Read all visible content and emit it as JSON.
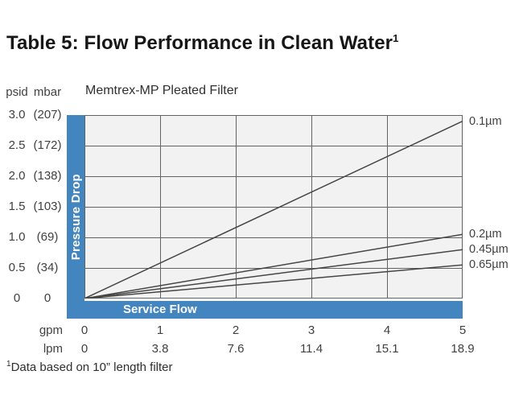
{
  "page": {
    "title": "Table 5: Flow Performance in Clean Water",
    "title_sup": "1",
    "footnote_sup": "1",
    "footnote_text": "Data based on 10” length filter"
  },
  "chart": {
    "subtitle": "Memtrex-MP Pleated Filter",
    "y_axis": {
      "unit_labels": [
        "psid",
        "mbar"
      ],
      "bar_label": "Pressure Drop",
      "ticks": [
        {
          "psid": "3.0",
          "mbar": "(207)"
        },
        {
          "psid": "2.5",
          "mbar": "(172)"
        },
        {
          "psid": "2.0",
          "mbar": "(138)"
        },
        {
          "psid": "1.5",
          "mbar": "(103)"
        },
        {
          "psid": "1.0",
          "mbar": "(69)"
        },
        {
          "psid": "0.5",
          "mbar": "(34)"
        },
        {
          "psid": "0",
          "mbar": "0"
        }
      ]
    },
    "x_axis": {
      "bar_label": "Service Flow",
      "rows": [
        {
          "label": "gpm",
          "values": [
            "0",
            "1",
            "2",
            "3",
            "4",
            "5"
          ]
        },
        {
          "label": "lpm",
          "values": [
            "0",
            "3.8",
            "7.6",
            "11.4",
            "15.1",
            "18.9"
          ]
        }
      ]
    },
    "colors": {
      "accent_blue": "#4285bf",
      "grid": "#626366",
      "line": "#454545",
      "plot_bg": "#f2f2f2"
    }
  },
  "chart_data": {
    "type": "line",
    "title": "Memtrex-MP Pleated Filter",
    "xlabel": "Service Flow",
    "ylabel": "Pressure Drop",
    "grid": true,
    "legend_position": "right-edge-labels",
    "x_axis": {
      "units": [
        "gpm",
        "lpm"
      ],
      "gpm_ticks": [
        0,
        1,
        2,
        3,
        4,
        5
      ],
      "lpm_ticks": [
        0,
        3.8,
        7.6,
        11.4,
        15.1,
        18.9
      ],
      "xlim_gpm": [
        0,
        5
      ]
    },
    "y_axis": {
      "units": [
        "psid",
        "mbar"
      ],
      "psid_ticks": [
        3.0,
        2.5,
        2.0,
        1.5,
        1.0,
        0.5,
        0
      ],
      "mbar_ticks": [
        207,
        172,
        138,
        103,
        69,
        34,
        0
      ],
      "ylim_psid": [
        0,
        3.0
      ]
    },
    "series": [
      {
        "name": "0.1µm",
        "x_gpm": [
          0,
          5
        ],
        "y_psid": [
          0,
          2.9
        ]
      },
      {
        "name": "0.2µm",
        "x_gpm": [
          0,
          5
        ],
        "y_psid": [
          0,
          1.05
        ]
      },
      {
        "name": "0.45µm",
        "x_gpm": [
          0,
          5
        ],
        "y_psid": [
          0,
          0.8
        ]
      },
      {
        "name": "0.65µm",
        "x_gpm": [
          0,
          5
        ],
        "y_psid": [
          0,
          0.55
        ]
      }
    ]
  }
}
